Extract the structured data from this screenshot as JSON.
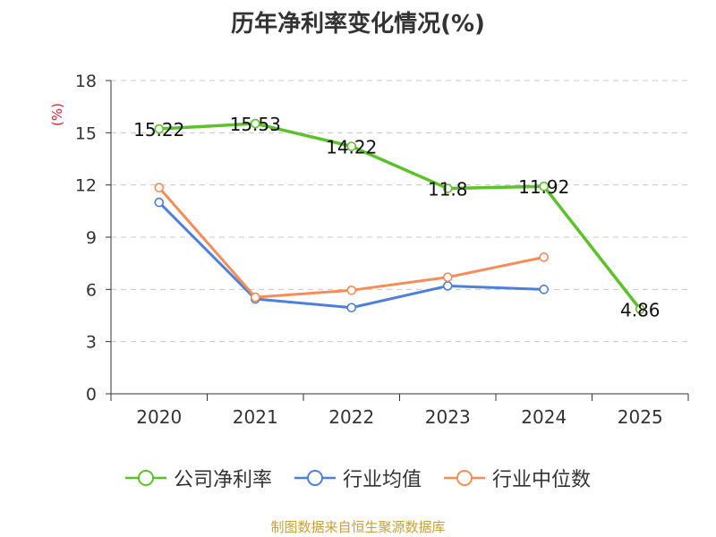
{
  "chart_data": {
    "type": "line",
    "title": "历年净利率变化情况(%)",
    "ylabel": "(%)",
    "xlabel": "",
    "ylim": [
      0,
      18
    ],
    "yticks": [
      "0",
      "3",
      "6",
      "9",
      "12",
      "15",
      "18"
    ],
    "categories": [
      "2020",
      "2021",
      "2022",
      "2023",
      "2024",
      "2025"
    ],
    "grid": true,
    "legend_position": "bottom",
    "series": [
      {
        "name": "公司净利率",
        "color": "#5cc22b",
        "values": [
          15.22,
          15.53,
          14.22,
          11.8,
          11.92,
          4.86
        ],
        "labels": [
          "15.22",
          "15.53",
          "14.22",
          "11.8",
          "11.92",
          "4.86"
        ]
      },
      {
        "name": "行业均值",
        "color": "#4e7fdc",
        "values": [
          11.0,
          5.45,
          4.95,
          6.2,
          6.0,
          null
        ]
      },
      {
        "name": "行业中位数",
        "color": "#f68c57",
        "values": [
          11.85,
          5.55,
          5.95,
          6.7,
          7.85,
          null
        ]
      }
    ]
  },
  "legend": {
    "items": [
      {
        "label": "公司净利率",
        "color": "#5cc22b"
      },
      {
        "label": "行业均值",
        "color": "#4e7fdc"
      },
      {
        "label": "行业中位数",
        "color": "#f68c57"
      }
    ]
  },
  "footer": {
    "source": "制图数据来自恒生聚源数据库"
  }
}
